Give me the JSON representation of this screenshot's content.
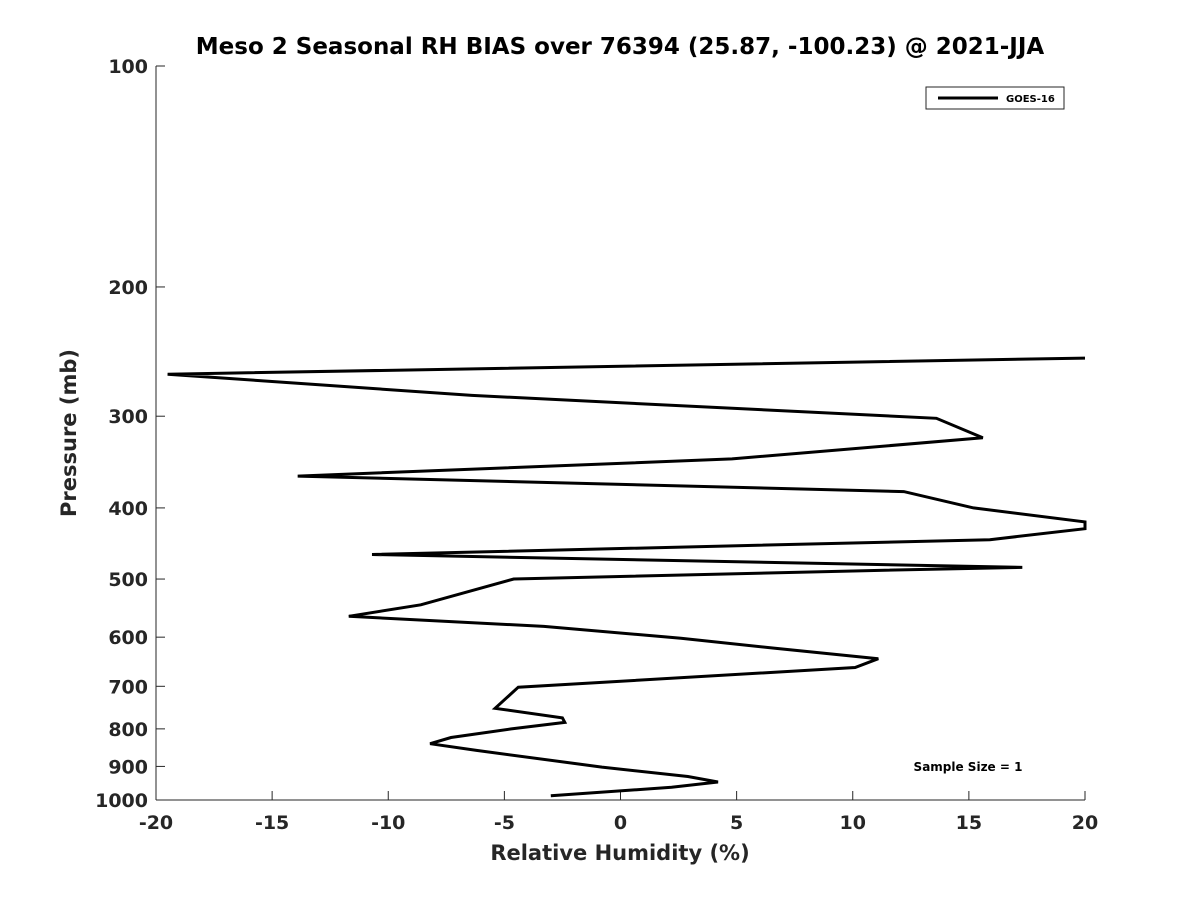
{
  "chart_data": {
    "type": "line",
    "title": "Meso 2 Seasonal RH BIAS over 76394 (25.87, -100.23) @ 2021-JJA",
    "xlabel": "Relative Humidity (%)",
    "ylabel": "Pressure (mb)",
    "xlim": [
      -20,
      20
    ],
    "ylim": [
      100,
      1000
    ],
    "y_scale": "log",
    "y_reversed": true,
    "grid": false,
    "x_ticks": [
      -20,
      -15,
      -10,
      -5,
      0,
      5,
      10,
      15,
      20
    ],
    "y_ticks": [
      100,
      200,
      300,
      400,
      500,
      600,
      700,
      800,
      900,
      1000
    ],
    "legend_position": "top-right",
    "series": [
      {
        "name": "GOES-16",
        "color": "#000000",
        "points": [
          {
            "x": 20.0,
            "y": 250
          },
          {
            "x": -19.5,
            "y": 263
          },
          {
            "x": -6.4,
            "y": 281
          },
          {
            "x": 13.6,
            "y": 302
          },
          {
            "x": 15.6,
            "y": 321
          },
          {
            "x": 4.8,
            "y": 343
          },
          {
            "x": -13.9,
            "y": 362
          },
          {
            "x": 12.2,
            "y": 380
          },
          {
            "x": 15.2,
            "y": 400
          },
          {
            "x": 20.0,
            "y": 418
          },
          {
            "x": 20.0,
            "y": 427
          },
          {
            "x": 15.9,
            "y": 442
          },
          {
            "x": -10.7,
            "y": 463
          },
          {
            "x": 17.3,
            "y": 482
          },
          {
            "x": 10.7,
            "y": 487
          },
          {
            "x": -4.6,
            "y": 500
          },
          {
            "x": -8.6,
            "y": 542
          },
          {
            "x": -11.7,
            "y": 562
          },
          {
            "x": -3.3,
            "y": 580
          },
          {
            "x": 2.6,
            "y": 602
          },
          {
            "x": 6.6,
            "y": 621
          },
          {
            "x": 11.1,
            "y": 642
          },
          {
            "x": 10.1,
            "y": 660
          },
          {
            "x": -4.4,
            "y": 702
          },
          {
            "x": -5.4,
            "y": 750
          },
          {
            "x": -2.5,
            "y": 773
          },
          {
            "x": -2.4,
            "y": 784
          },
          {
            "x": -4.7,
            "y": 800
          },
          {
            "x": -7.3,
            "y": 822
          },
          {
            "x": -8.2,
            "y": 838
          },
          {
            "x": -6.2,
            "y": 856
          },
          {
            "x": -0.8,
            "y": 902
          },
          {
            "x": 2.9,
            "y": 929
          },
          {
            "x": 4.2,
            "y": 945
          },
          {
            "x": 2.2,
            "y": 961
          },
          {
            "x": -3.0,
            "y": 987
          }
        ]
      }
    ],
    "annotations": [
      {
        "text": "Sample Size = 1",
        "position": "bottom-right"
      }
    ]
  }
}
